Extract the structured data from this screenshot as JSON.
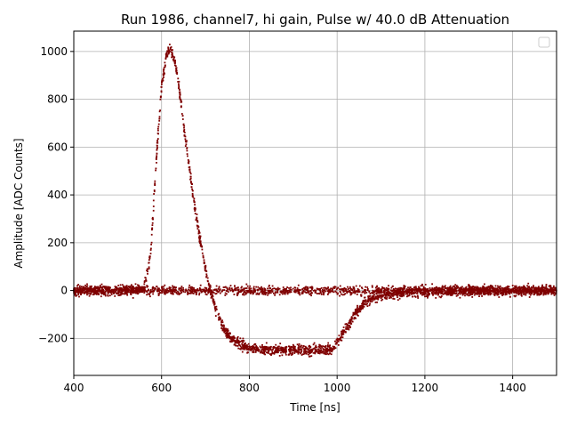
{
  "chart_data": {
    "type": "scatter",
    "title": "Run 1986, channel7, hi gain, Pulse w/ 40.0 dB Attenuation",
    "xlabel": "Time [ns]",
    "ylabel": "Amplitude [ADC Counts]",
    "xlim": [
      400,
      1500
    ],
    "ylim": [
      -355,
      1085
    ],
    "xticks": [
      400,
      600,
      800,
      1000,
      1200,
      1400
    ],
    "yticks": [
      -200,
      0,
      200,
      400,
      600,
      800,
      1000
    ],
    "xtick_labels": [
      "400",
      "600",
      "800",
      "1000",
      "1200",
      "1400"
    ],
    "ytick_labels": [
      "−200",
      "0",
      "200",
      "400",
      "600",
      "800",
      "1000"
    ],
    "grid": true,
    "legend": "top-right (empty)",
    "point_color": "#7f0000",
    "series": [
      {
        "x": [
          400,
          500,
          560,
          575,
          590,
          600,
          610,
          620,
          630,
          640,
          650,
          660,
          670,
          680,
          690,
          700,
          710,
          720,
          730,
          740,
          750,
          760,
          780,
          800,
          850,
          900,
          950,
          990,
          1000,
          1020,
          1040,
          1060,
          1080,
          1100,
          1150,
          1200,
          1300,
          1400,
          1500
        ],
        "y": [
          0,
          0,
          5,
          150,
          600,
          850,
          980,
          1010,
          960,
          850,
          700,
          560,
          420,
          300,
          190,
          90,
          10,
          -60,
          -110,
          -150,
          -180,
          -200,
          -225,
          -240,
          -248,
          -250,
          -250,
          -245,
          -215,
          -160,
          -100,
          -55,
          -30,
          -20,
          -10,
          -5,
          0,
          0,
          0
        ]
      },
      {
        "x": [
          400,
          600,
          800,
          1000,
          1200,
          1400,
          1500
        ],
        "y": [
          0,
          0,
          0,
          0,
          0,
          0,
          0
        ]
      }
    ]
  }
}
